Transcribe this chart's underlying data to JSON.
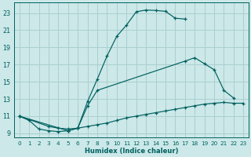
{
  "xlabel": "Humidex (Indice chaleur)",
  "bg_color": "#cce8e8",
  "grid_color": "#aacfcf",
  "line_color": "#006060",
  "xlim": [
    -0.5,
    23.5
  ],
  "ylim": [
    8.5,
    24.2
  ],
  "xticks": [
    0,
    1,
    2,
    3,
    4,
    5,
    6,
    7,
    8,
    9,
    10,
    11,
    12,
    13,
    14,
    15,
    16,
    17,
    18,
    19,
    20,
    21,
    22,
    23
  ],
  "yticks": [
    9,
    11,
    13,
    15,
    17,
    19,
    21,
    23
  ],
  "line1_x": [
    0,
    1,
    2,
    3,
    4,
    5,
    6,
    7,
    8,
    9,
    10,
    11,
    12,
    13,
    14,
    15,
    16,
    17
  ],
  "line1_y": [
    11.0,
    10.5,
    9.5,
    9.3,
    9.2,
    9.3,
    9.6,
    12.7,
    15.3,
    18.0,
    20.3,
    21.6,
    23.15,
    23.35,
    23.3,
    23.2,
    22.4,
    22.3
  ],
  "line2_x": [
    0,
    5,
    6,
    7,
    8,
    17,
    18,
    19,
    20,
    21,
    22
  ],
  "line2_y": [
    11.0,
    9.3,
    9.6,
    12.2,
    14.0,
    17.4,
    17.8,
    17.1,
    16.4,
    14.0,
    13.1
  ],
  "line3_x": [
    0,
    3,
    4,
    5,
    6,
    7,
    8,
    9,
    10,
    11,
    12,
    13,
    14,
    15,
    16,
    17,
    18,
    19,
    20,
    21,
    22,
    23
  ],
  "line3_y": [
    11.0,
    9.8,
    9.6,
    9.5,
    9.6,
    9.8,
    10.0,
    10.2,
    10.5,
    10.8,
    11.0,
    11.2,
    11.4,
    11.6,
    11.8,
    12.0,
    12.2,
    12.4,
    12.5,
    12.6,
    12.5,
    12.5
  ]
}
